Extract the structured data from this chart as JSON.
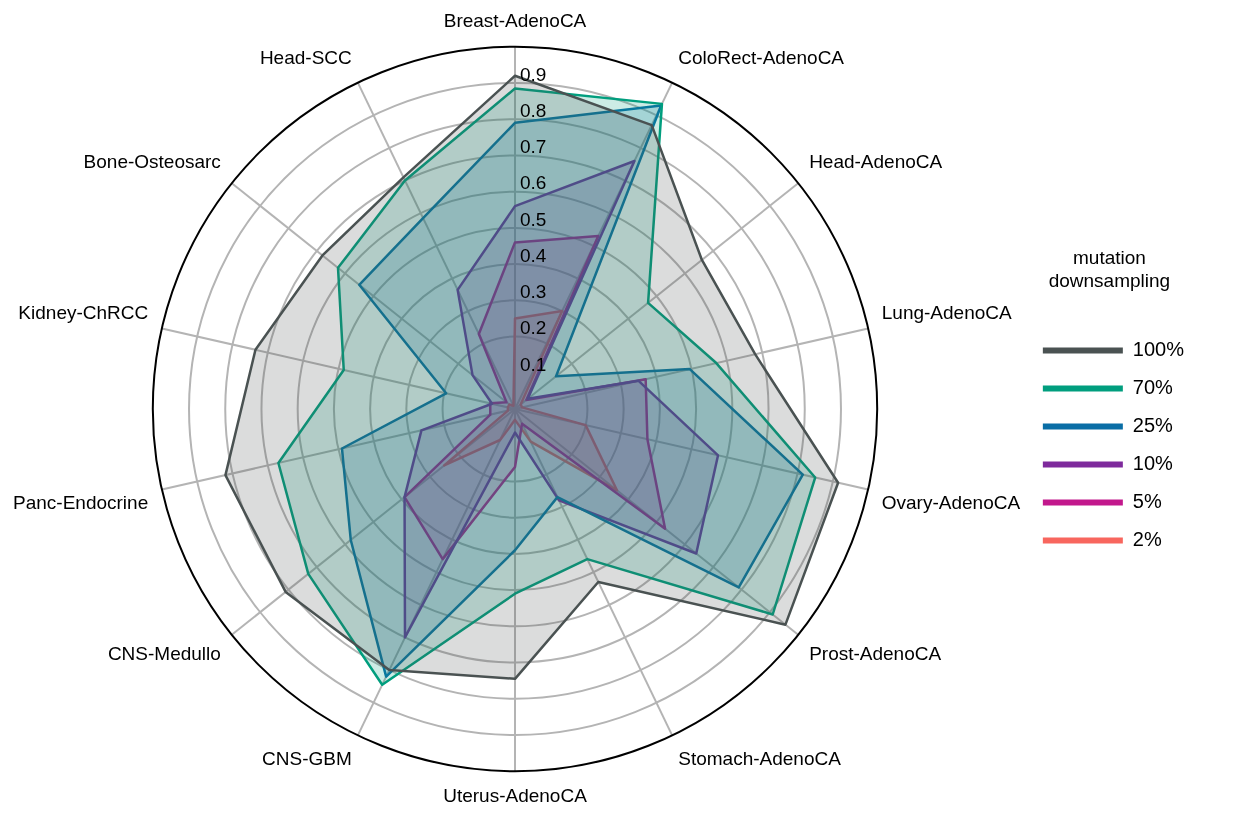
{
  "chart_data": {
    "type": "radar",
    "legend_title": "mutation downsampling",
    "legend": "right",
    "marker": "none",
    "grid": true,
    "categories": [
      "Breast-AdenoCA",
      "ColoRect-AdenoCA",
      "Head-AdenoCA",
      "Lung-AdenoCA",
      "Ovary-AdenoCA",
      "Prost-AdenoCA",
      "Stomach-AdenoCA",
      "Uterus-AdenoCA",
      "CNS-GBM",
      "CNS-Medullo",
      "Panc-Endocrine",
      "Kidney-ChRCC",
      "Bone-Osteosarc",
      "Head-SCC"
    ],
    "ylim": [
      0,
      1
    ],
    "yticks": [
      0.1,
      0.2,
      0.3,
      0.4,
      0.5,
      0.6,
      0.7,
      0.8,
      0.9
    ],
    "series": [
      {
        "name": "100%",
        "color": "#4a5252",
        "values": [
          0.92,
          0.87,
          0.66,
          0.68,
          0.915,
          0.955,
          0.53,
          0.745,
          0.8,
          0.81,
          0.82,
          0.735,
          0.68,
          0.71
        ]
      },
      {
        "name": "70%",
        "color": "#009e7e",
        "values": [
          0.885,
          0.935,
          0.47,
          0.57,
          0.85,
          0.91,
          0.46,
          0.51,
          0.845,
          0.73,
          0.67,
          0.485,
          0.625,
          0.7
        ]
      },
      {
        "name": "25%",
        "color": "#0a6ea6",
        "values": [
          0.79,
          0.93,
          0.145,
          0.495,
          0.815,
          0.79,
          0.27,
          0.39,
          0.82,
          0.58,
          0.49,
          0.195,
          0.55,
          0.585
        ]
      },
      {
        "name": "10%",
        "color": "#7e2a9c",
        "values": [
          0.56,
          0.76,
          0.045,
          0.35,
          0.575,
          0.64,
          0.28,
          0.065,
          0.7,
          0.39,
          0.265,
          0.065,
          0.15,
          0.365
        ]
      },
      {
        "name": "5%",
        "color": "#c2188c",
        "values": [
          0.46,
          0.53,
          0.04,
          0.37,
          0.375,
          0.53,
          0.045,
          0.16,
          0.46,
          0.39,
          0.07,
          0.07,
          0.03,
          0.23
        ]
      },
      {
        "name": "2%",
        "color": "#f8665e",
        "values": [
          0.25,
          0.3,
          0.02,
          0.02,
          0.2,
          0.36,
          0.1,
          0.03,
          0.095,
          0.25,
          0.02,
          0.02,
          0.02,
          0.01
        ]
      }
    ]
  }
}
